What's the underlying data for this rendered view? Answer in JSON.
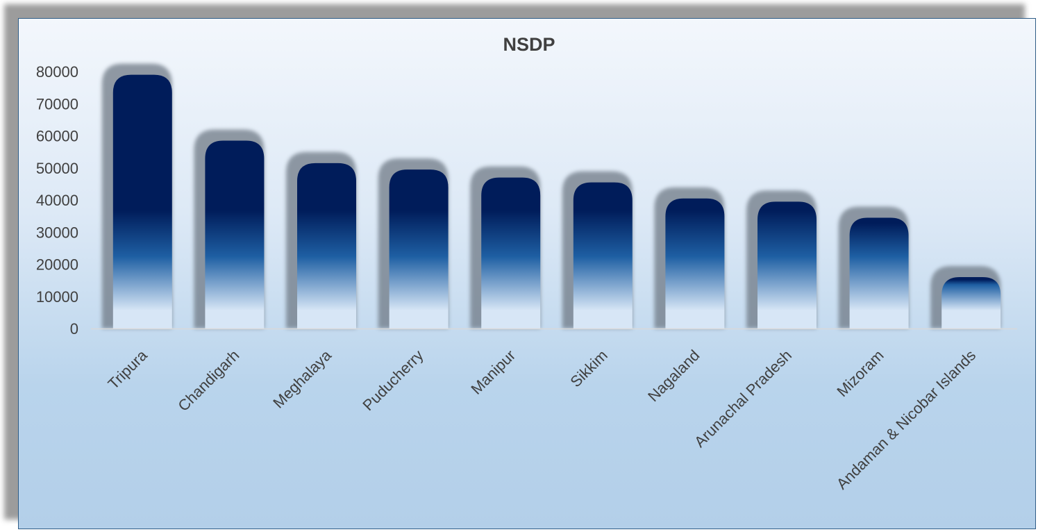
{
  "chart_data": {
    "type": "bar",
    "title": "NSDP",
    "xlabel": "",
    "ylabel": "",
    "categories": [
      "Tripura",
      "Chandigarh",
      "Meghalaya",
      "Puducherry",
      "Manipur",
      "Sikkim",
      "Nagaland",
      "Arunachal Pradesh",
      "Mizoram",
      "Andaman & Nicobar Islands"
    ],
    "values": [
      79000,
      58500,
      51500,
      49500,
      47000,
      45500,
      40500,
      39500,
      34500,
      16000
    ],
    "ylim": [
      0,
      80000
    ],
    "yticks": [
      "0",
      "10000",
      "20000",
      "30000",
      "40000",
      "50000",
      "60000",
      "70000",
      "80000"
    ],
    "grid": false,
    "legend": "none",
    "colors": {
      "bar_top": "#001c5a",
      "bar_mid": "#1e5fa3",
      "bar_bottom": "#d7e6f6",
      "text": "#404040",
      "frame_border": "#2e5c86"
    }
  }
}
